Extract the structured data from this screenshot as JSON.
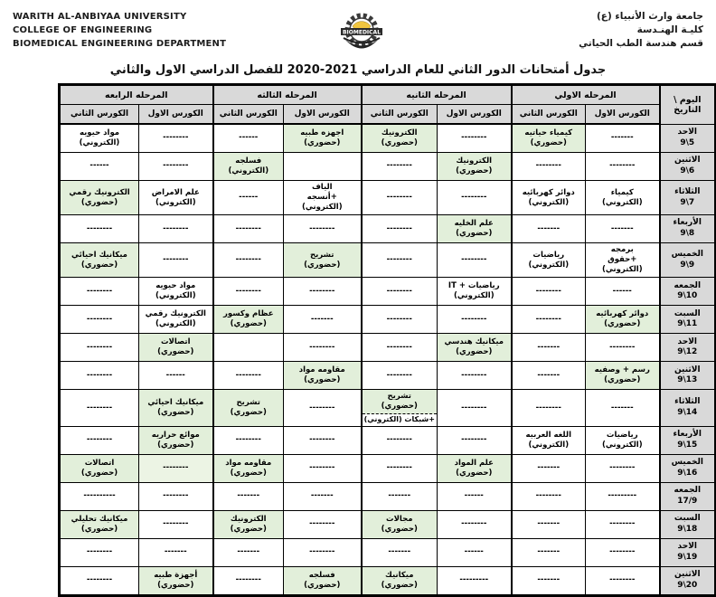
{
  "header": {
    "university_en": [
      "WARITH AL-ANBIYAA UNIVERSITY",
      "COLLEGE OF ENGINEERING",
      "BIOMEDICAL ENGINEERING DEPARTMENT"
    ],
    "university_ar": [
      "جامعة وارث الأنبياء (ع)",
      "كليـة الهنـدسة",
      "قسم هندسة الطب الحياتي"
    ],
    "logo_text": "BIOMEDICAL",
    "title": "جدول أمتحانات الدور الثاني للعام الدراسي 2021-2020 للفصل الدراسي الاول والثاني"
  },
  "colors": {
    "present_green": "#e2efda",
    "present_green_light": "#ecf4e4",
    "header_gray": "#d9d9d9"
  },
  "table": {
    "day_header": "اليوم \\\nالتاريخ",
    "stages": [
      "المرحله الاولي",
      "المرحله الثانيه",
      "المرحله الثالثه",
      "المرحله الرابعه"
    ],
    "course_first": "الكورس الاول",
    "course_second": "الكورس الثاني",
    "rows": [
      {
        "day": "الاحد",
        "date": "9\\5",
        "cells": [
          {
            "t": "-------",
            "bg": "w"
          },
          {
            "t": "كيمياء حياتيه\n(حضوري)",
            "bg": "g"
          },
          {
            "t": "--------",
            "bg": "w"
          },
          {
            "t": "الكترونيك (حضوري)",
            "bg": "g"
          },
          {
            "t": "اجهزه طبيه\n(حضوري)",
            "bg": "g"
          },
          {
            "t": "------",
            "bg": "w"
          },
          {
            "t": "--------",
            "bg": "w"
          },
          {
            "t": "مواد حيويه\n(الكتروني)",
            "bg": "w"
          }
        ]
      },
      {
        "day": "الاثنين",
        "date": "9\\6",
        "cells": [
          {
            "t": "--------",
            "bg": "w"
          },
          {
            "t": "--------",
            "bg": "w"
          },
          {
            "t": "الكترونيك\n(حضوري)",
            "bg": "g"
          },
          {
            "t": "--------",
            "bg": "w"
          },
          {
            "t": "",
            "bg": "w"
          },
          {
            "t": "فسلجه\n(الكتروني)",
            "bg": "g"
          },
          {
            "t": "--------",
            "bg": "w"
          },
          {
            "t": "------",
            "bg": "w"
          }
        ]
      },
      {
        "day": "الثلاثاء",
        "date": "9\\7",
        "cells": [
          {
            "t": "كيمياء\n(الكتروني)",
            "bg": "w"
          },
          {
            "t": "دوائر كهربائيه\n(الكتروني)",
            "bg": "w"
          },
          {
            "t": "--------",
            "bg": "w"
          },
          {
            "t": "--------",
            "bg": "w"
          },
          {
            "t": "الياف\n+أنسجه\n(الكتروني)",
            "bg": "w"
          },
          {
            "t": "------",
            "bg": "w"
          },
          {
            "t": "علم الامراض\n(الكتروني)",
            "bg": "w"
          },
          {
            "t": "الكترونيك رقمي\n(حضوري)",
            "bg": "g"
          }
        ]
      },
      {
        "day": "الأربعاء",
        "date": "9\\8",
        "cells": [
          {
            "t": "-------",
            "bg": "w"
          },
          {
            "t": "-------",
            "bg": "w"
          },
          {
            "t": "علم الخليه\n(حضوري)",
            "bg": "g"
          },
          {
            "t": "--------",
            "bg": "w"
          },
          {
            "t": "--------",
            "bg": "w"
          },
          {
            "t": "--------",
            "bg": "w"
          },
          {
            "t": "--------",
            "bg": "w"
          },
          {
            "t": "--------",
            "bg": "w"
          }
        ]
      },
      {
        "day": "الخميس",
        "date": "9\\9",
        "cells": [
          {
            "t": "برمجه\n+حقوق\n(الكتروني)",
            "bg": "w"
          },
          {
            "t": "رياضيات\n(الكتروني)",
            "bg": "w"
          },
          {
            "t": "--------",
            "bg": "w"
          },
          {
            "t": "--------",
            "bg": "w"
          },
          {
            "t": "تشريح\n(حضوري)",
            "bg": "g"
          },
          {
            "t": "--------",
            "bg": "w"
          },
          {
            "t": "--------",
            "bg": "w"
          },
          {
            "t": "ميكانيك احيائي\n(حضوري)",
            "bg": "g"
          }
        ]
      },
      {
        "day": "الجمعه",
        "date": "9\\10",
        "cells": [
          {
            "t": "------",
            "bg": "w"
          },
          {
            "t": "--------",
            "bg": "w"
          },
          {
            "t": "رياضيات + IT\n(الكتروني)",
            "bg": "w"
          },
          {
            "t": "--------",
            "bg": "w"
          },
          {
            "t": "--------",
            "bg": "w"
          },
          {
            "t": "--------",
            "bg": "w"
          },
          {
            "t": "مواد حيويه\n(الكتروني)",
            "bg": "w"
          },
          {
            "t": "--------",
            "bg": "w"
          }
        ]
      },
      {
        "day": "السبت",
        "date": "9\\11",
        "cells": [
          {
            "t": "دوائر كهربائيه\n(حضوري)",
            "bg": "g"
          },
          {
            "t": "--------",
            "bg": "w"
          },
          {
            "t": "--------",
            "bg": "w"
          },
          {
            "t": "--------",
            "bg": "w"
          },
          {
            "t": "-------",
            "bg": "w"
          },
          {
            "t": "عظام وكسور\n(حضوري)",
            "bg": "g"
          },
          {
            "t": "الكترونيك رقمي\n(الكتروني)",
            "bg": "w"
          },
          {
            "t": "--------",
            "bg": "w"
          }
        ]
      },
      {
        "day": "الاحد",
        "date": "9\\12",
        "cells": [
          {
            "t": "--------",
            "bg": "w"
          },
          {
            "t": "-------",
            "bg": "w"
          },
          {
            "t": "ميكانيك هندسي\n(حضوري)",
            "bg": "g"
          },
          {
            "t": "--------",
            "bg": "w"
          },
          {
            "t": "--------",
            "bg": "w"
          },
          {
            "t": "",
            "bg": "w"
          },
          {
            "t": "اتصالات\n(حضوري)",
            "bg": "g"
          },
          {
            "t": "--------",
            "bg": "w"
          }
        ]
      },
      {
        "day": "الاثنين",
        "date": "9\\13",
        "cells": [
          {
            "t": "رسم + وصفيه\n(حضوري)",
            "bg": "g"
          },
          {
            "t": "-------",
            "bg": "w"
          },
          {
            "t": "--------",
            "bg": "w"
          },
          {
            "t": "--------",
            "bg": "w"
          },
          {
            "t": "مقاومه مواد\n(حضوري)",
            "bg": "g"
          },
          {
            "t": "--------",
            "bg": "w"
          },
          {
            "t": "------",
            "bg": "w"
          },
          {
            "t": "--------",
            "bg": "w"
          }
        ]
      },
      {
        "day": "الثلاثاء",
        "date": "9\\14",
        "cells": [
          {
            "t": "-------",
            "bg": "w"
          },
          {
            "t": "--------",
            "bg": "w"
          },
          {
            "t": "--------",
            "bg": "w"
          },
          {
            "split": true,
            "top": "تشريح\n(حضوري)",
            "bottom": "+شبكات (الكتروني)"
          },
          {
            "t": "--------",
            "bg": "w"
          },
          {
            "t": "تشريح\n(حضوري)",
            "bg": "g"
          },
          {
            "t": "ميكانيك احيائي\n(حضوري)",
            "bg": "g"
          },
          {
            "t": "--------",
            "bg": "w"
          }
        ]
      },
      {
        "day": "الأربعاء",
        "date": "9\\15",
        "cells": [
          {
            "t": "رياضيات\n(الكتروني)",
            "bg": "w"
          },
          {
            "t": "اللغه العربيه\n(الكتروني)",
            "bg": "w"
          },
          {
            "t": "--------",
            "bg": "w"
          },
          {
            "t": "--------",
            "bg": "w"
          },
          {
            "t": "--------",
            "bg": "w"
          },
          {
            "t": "--------",
            "bg": "w"
          },
          {
            "t": "موائع حراريه\n(حضوري)",
            "bg": "g"
          },
          {
            "t": "--------",
            "bg": "w"
          }
        ]
      },
      {
        "day": "الخميس",
        "date": "9\\16",
        "cells": [
          {
            "t": "--------",
            "bg": "w"
          },
          {
            "t": "-------",
            "bg": "w"
          },
          {
            "t": "علم المواد\n(حضوري)",
            "bg": "g"
          },
          {
            "t": "--------",
            "bg": "w"
          },
          {
            "t": "--------",
            "bg": "w"
          },
          {
            "t": "مقاومه مواد\n(حضوري)",
            "bg": "g"
          },
          {
            "t": "--------",
            "bg": "lg"
          },
          {
            "t": "اتصالات\n(حضوري)",
            "bg": "g"
          }
        ]
      },
      {
        "day": "الجمعه",
        "date": "17/9",
        "cells": [
          {
            "t": "---------",
            "bg": "w"
          },
          {
            "t": "--------",
            "bg": "w"
          },
          {
            "t": "------",
            "bg": "w"
          },
          {
            "t": "-------",
            "bg": "w"
          },
          {
            "t": "-------",
            "bg": "w"
          },
          {
            "t": "-------",
            "bg": "w"
          },
          {
            "t": "--------",
            "bg": "w"
          },
          {
            "t": "----------",
            "bg": "w"
          }
        ]
      },
      {
        "day": "السبت",
        "date": "9\\18",
        "cells": [
          {
            "t": "--------",
            "bg": "w"
          },
          {
            "t": "-------",
            "bg": "w"
          },
          {
            "t": "--------",
            "bg": "w"
          },
          {
            "t": "مجالات\n(حضوري)",
            "bg": "g"
          },
          {
            "t": "--------",
            "bg": "w"
          },
          {
            "t": "الكترونيك\n(حضوري)",
            "bg": "g"
          },
          {
            "t": "--------",
            "bg": "w"
          },
          {
            "t": "ميكانيك تحليلي\n(حضوري)",
            "bg": "g"
          }
        ]
      },
      {
        "day": "الاحد",
        "date": "9\\19",
        "cells": [
          {
            "t": "--------",
            "bg": "w"
          },
          {
            "t": "-------",
            "bg": "w"
          },
          {
            "t": "------",
            "bg": "w"
          },
          {
            "t": "-------",
            "bg": "w"
          },
          {
            "t": "--------",
            "bg": "w"
          },
          {
            "t": "-------",
            "bg": "w"
          },
          {
            "t": "-------",
            "bg": "w"
          },
          {
            "t": "--------",
            "bg": "w"
          }
        ]
      },
      {
        "day": "الاثنين",
        "date": "9\\20",
        "cells": [
          {
            "t": "--------",
            "bg": "w"
          },
          {
            "t": "-------",
            "bg": "w"
          },
          {
            "t": "---------",
            "bg": "w"
          },
          {
            "t": "ميكانيك\n(حضوري)",
            "bg": "g"
          },
          {
            "t": "فسلجه\n(حضوري)",
            "bg": "g"
          },
          {
            "t": "--------",
            "bg": "w"
          },
          {
            "t": "أجهزة طبيه\n(حضوري)",
            "bg": "g"
          },
          {
            "t": "--------",
            "bg": "w"
          }
        ]
      }
    ]
  }
}
